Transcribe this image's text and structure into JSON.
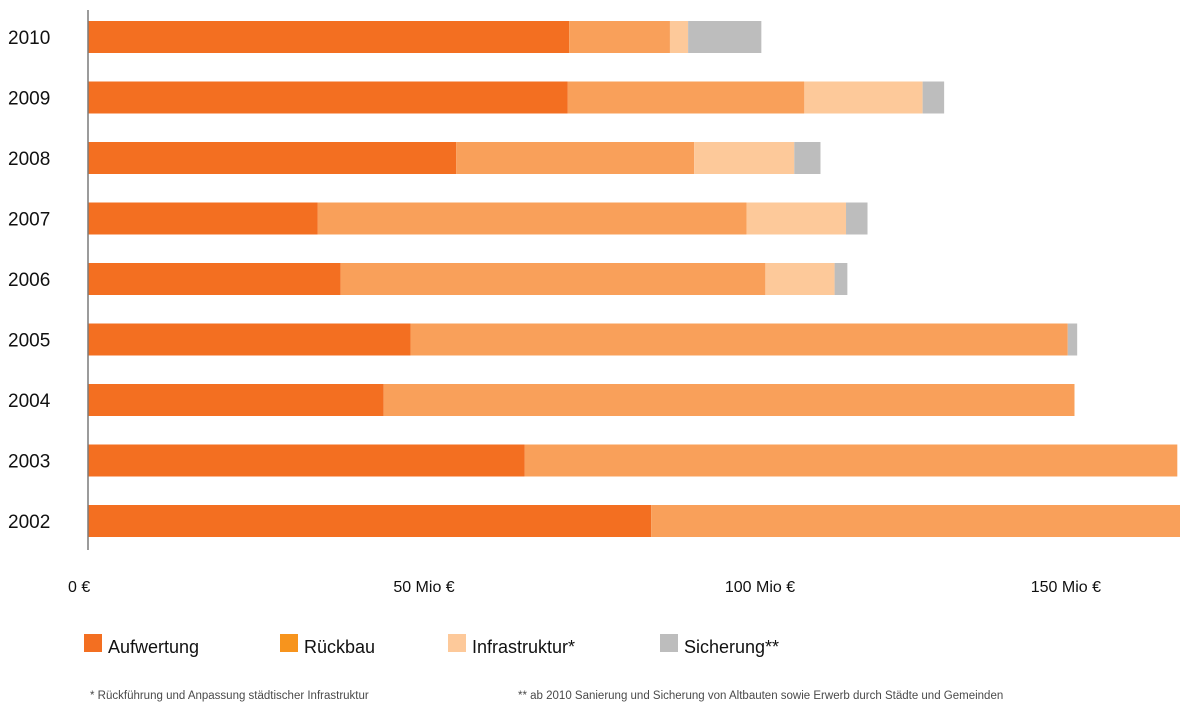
{
  "chart_data": {
    "type": "bar",
    "orientation": "horizontal",
    "stacked": true,
    "categories": [
      "2010",
      "2009",
      "2008",
      "2007",
      "2006",
      "2005",
      "2004",
      "2003",
      "2002"
    ],
    "series": [
      {
        "name": "Aufwertung",
        "color": "#f36f21",
        "values": [
          71.6,
          71.4,
          54.8,
          34.2,
          37.6,
          48.0,
          44.0,
          65.0,
          83.8
        ]
      },
      {
        "name": "Rückbau",
        "color": "#f9a05a",
        "values": [
          15.0,
          35.2,
          35.4,
          63.8,
          63.2,
          97.8,
          102.8,
          97.1,
          78.7
        ]
      },
      {
        "name": "Infrastruktur*",
        "color": "#fdc99a",
        "values": [
          2.7,
          17.6,
          14.9,
          14.8,
          10.3,
          0,
          0,
          0,
          0
        ]
      },
      {
        "name": "Sicherung**",
        "color": "#bdbdbd",
        "values": [
          10.9,
          3.2,
          3.9,
          3.2,
          1.9,
          1.4,
          0,
          0,
          0
        ]
      }
    ],
    "x_ticks": [
      {
        "value": 0,
        "label": "0 €"
      },
      {
        "value": 50,
        "label": "50 Mio €"
      },
      {
        "value": 100,
        "label": "100 Mio €"
      },
      {
        "value": 150,
        "label": "150 Mio €"
      }
    ],
    "xlim": [
      0,
      162
    ],
    "grid": false,
    "legend_position": "bottom-left",
    "footnotes": [
      "*  Rückführung und Anpassung städtischer Infrastruktur",
      "** ab 2010 Sanierung und Sicherung von Altbauten sowie  Erwerb durch Städte und Gemeinden"
    ]
  }
}
